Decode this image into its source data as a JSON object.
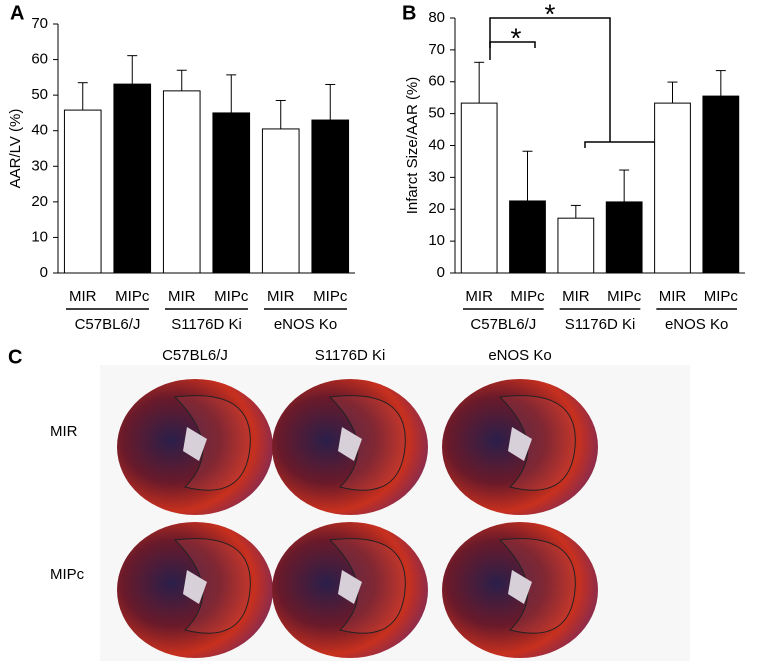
{
  "chart_data": [
    {
      "type": "bar",
      "panel_label": "A",
      "ylabel": "AAR/LV (%)",
      "categories": [
        "MIR",
        "MIPc",
        "MIR",
        "MIPc",
        "MIR",
        "MIPc"
      ],
      "groups": [
        "C57BL6/J",
        "S1176D Ki",
        "eNOS Ko"
      ],
      "values": [
        45.8,
        53.1,
        51.2,
        45,
        40.5,
        43
      ],
      "errors": [
        7.7,
        8,
        5.8,
        10.7,
        8,
        10
      ],
      "colors": [
        "#ffffff",
        "#000000",
        "#ffffff",
        "#000000",
        "#ffffff",
        "#000000"
      ],
      "ylim": [
        0,
        70
      ],
      "yticks": [
        0,
        10,
        20,
        30,
        40,
        50,
        60,
        70
      ]
    },
    {
      "type": "bar",
      "panel_label": "B",
      "ylabel": "Infarct Size/AAR (%)",
      "categories": [
        "MIR",
        "MIPc",
        "MIR",
        "MIPc",
        "MIR",
        "MIPc"
      ],
      "groups": [
        "C57BL6/J",
        "S1176D Ki",
        "eNOS Ko"
      ],
      "values": [
        53.3,
        22.6,
        17.2,
        22.3,
        53.3,
        55.5
      ],
      "errors": [
        12.8,
        15.6,
        4,
        10,
        6.6,
        8
      ],
      "colors": [
        "#ffffff",
        "#000000",
        "#ffffff",
        "#000000",
        "#ffffff",
        "#000000"
      ],
      "ylim": [
        0,
        80
      ],
      "yticks": [
        0,
        10,
        20,
        30,
        40,
        50,
        60,
        70,
        80
      ],
      "annotations": [
        "*",
        "*"
      ]
    }
  ],
  "panel_c": {
    "panel_label": "C",
    "columns": [
      "C57BL6/J",
      "S1176D Ki",
      "eNOS Ko"
    ],
    "rows": [
      "MIR",
      "MIPc"
    ]
  }
}
